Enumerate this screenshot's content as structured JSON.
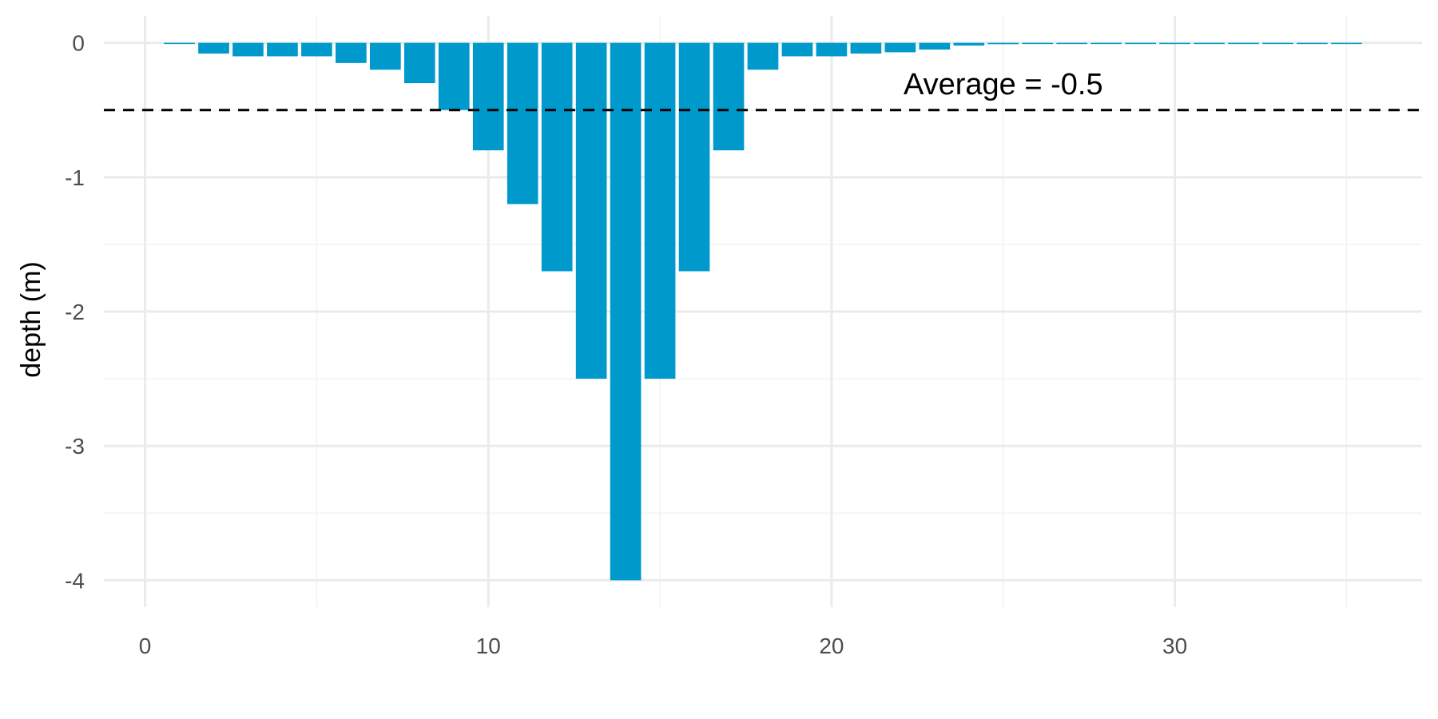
{
  "chart_data": {
    "type": "bar",
    "title": "",
    "xlabel": "",
    "ylabel": "depth (m)",
    "xlim": [
      -1.2,
      37.2
    ],
    "ylim": [
      -4.2,
      0.2
    ],
    "x_ticks": [
      0,
      10,
      20,
      30
    ],
    "x_minor_ticks": [
      5,
      15,
      25,
      35
    ],
    "y_ticks": [
      0,
      -1,
      -2,
      -3,
      -4
    ],
    "y_minor_ticks": [
      -0.5,
      -1.5,
      -2.5,
      -3.5
    ],
    "x_tick_labels": [
      "0",
      "10",
      "20",
      "30"
    ],
    "y_tick_labels": [
      "0",
      "-1",
      "-2",
      "-3",
      "-4"
    ],
    "grid": true,
    "x": [
      1,
      2,
      3,
      4,
      5,
      6,
      7,
      8,
      9,
      10,
      11,
      12,
      13,
      14,
      15,
      16,
      17,
      18,
      19,
      20,
      21,
      22,
      23,
      24,
      25,
      26,
      27,
      28,
      29,
      30,
      31,
      32,
      33,
      34,
      35
    ],
    "values": [
      -0.005,
      -0.08,
      -0.1,
      -0.1,
      -0.1,
      -0.15,
      -0.2,
      -0.3,
      -0.5,
      -0.8,
      -1.2,
      -1.7,
      -2.5,
      -4.0,
      -2.5,
      -1.7,
      -0.8,
      -0.2,
      -0.1,
      -0.1,
      -0.08,
      -0.07,
      -0.05,
      -0.02,
      -0.01,
      -0.005,
      -0.005,
      -0.005,
      -0.005,
      -0.005,
      -0.005,
      -0.005,
      -0.005,
      -0.005,
      -0.005
    ],
    "bar_color": "#0099cc",
    "reference_line": {
      "value": -0.5,
      "style": "dashed",
      "color": "#000000"
    },
    "annotation": {
      "text": "Average = -0.5",
      "x": 25,
      "y": -0.3
    }
  }
}
